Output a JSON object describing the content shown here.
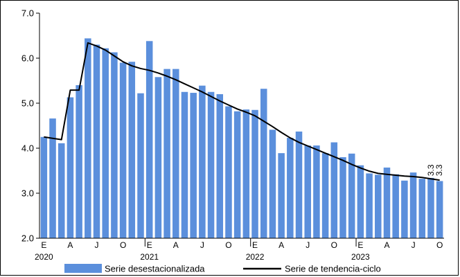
{
  "chart_data": {
    "type": "bar",
    "title": "",
    "xlabel": "",
    "ylabel": "",
    "ylim": [
      2.0,
      7.0
    ],
    "yticks": [
      "2.0",
      "3.0",
      "4.0",
      "5.0",
      "6.0",
      "7.0"
    ],
    "grid": false,
    "legend_position": "bottom",
    "month_labels": [
      "E",
      "A",
      "J",
      "O",
      "E",
      "A",
      "J",
      "O",
      "E",
      "A",
      "J",
      "O",
      "E",
      "A",
      "J",
      "O"
    ],
    "year_labels": [
      "2020",
      "2021",
      "2022",
      "2023"
    ],
    "series": [
      {
        "name": "Serie desestacionalizada",
        "kind": "bar",
        "color": "#5b8fdc",
        "values": [
          4.25,
          4.66,
          4.11,
          5.13,
          5.4,
          6.44,
          6.3,
          6.22,
          6.13,
          5.9,
          5.92,
          5.22,
          6.38,
          5.58,
          5.76,
          5.76,
          5.25,
          5.23,
          5.39,
          5.25,
          5.2,
          4.93,
          4.82,
          4.86,
          4.85,
          5.32,
          4.41,
          3.89,
          4.23,
          4.37,
          4.06,
          4.06,
          3.89,
          4.13,
          3.8,
          3.88,
          3.62,
          3.44,
          3.41,
          3.57,
          3.42,
          3.28,
          3.46,
          3.32,
          3.34,
          3.27
        ]
      },
      {
        "name": "Serie de tendencia-ciclo",
        "kind": "line",
        "color": "#000000",
        "values": [
          4.25,
          4.22,
          4.19,
          5.29,
          5.29,
          6.34,
          6.27,
          6.18,
          6.05,
          5.92,
          5.83,
          5.77,
          5.73,
          5.67,
          5.6,
          5.52,
          5.43,
          5.34,
          5.25,
          5.15,
          5.05,
          4.96,
          4.87,
          4.8,
          4.72,
          4.6,
          4.48,
          4.35,
          4.23,
          4.13,
          4.05,
          3.97,
          3.89,
          3.81,
          3.73,
          3.64,
          3.56,
          3.49,
          3.44,
          3.42,
          3.4,
          3.38,
          3.37,
          3.35,
          3.32,
          3.29
        ]
      }
    ],
    "annotations": [
      "3.3",
      "3.3"
    ]
  }
}
